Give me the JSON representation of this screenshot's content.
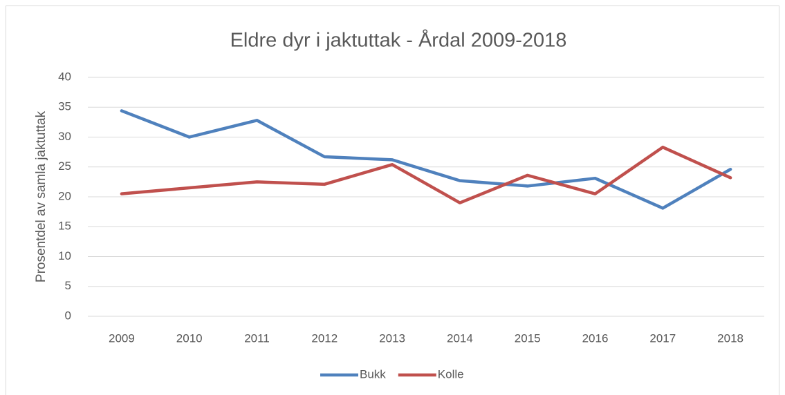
{
  "chart_data": {
    "type": "line",
    "title": "Eldre dyr i jaktuttak - Årdal 2009-2018",
    "ylabel": "Prosentdel av samla jaktuttak",
    "categories": [
      "2009",
      "2010",
      "2011",
      "2012",
      "2013",
      "2014",
      "2015",
      "2016",
      "2017",
      "2018"
    ],
    "series": [
      {
        "name": "Bukk",
        "color": "#4f81bd",
        "values": [
          34.4,
          30.0,
          32.8,
          26.7,
          26.2,
          22.7,
          21.8,
          23.1,
          18.1,
          24.6
        ]
      },
      {
        "name": "Kolle",
        "color": "#c0504d",
        "values": [
          20.5,
          21.5,
          22.5,
          22.1,
          25.4,
          19.0,
          23.6,
          20.5,
          28.3,
          23.2
        ]
      }
    ],
    "ylim": [
      0,
      40
    ],
    "yticks": [
      0,
      5,
      10,
      15,
      20,
      25,
      30,
      35,
      40
    ],
    "grid": true,
    "legend": "bottom"
  }
}
